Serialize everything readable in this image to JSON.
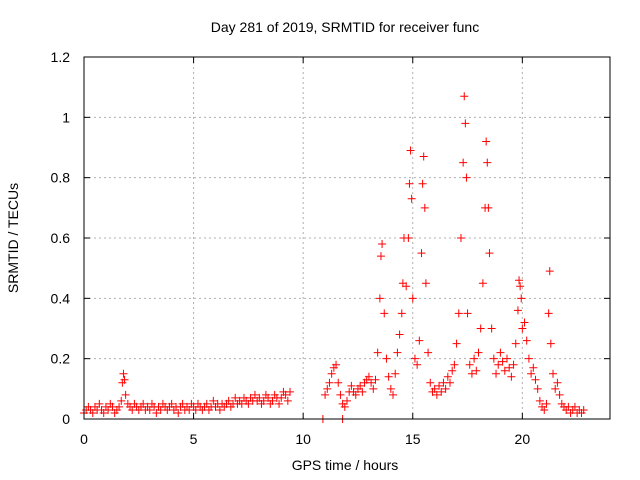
{
  "chart_data": {
    "type": "scatter",
    "title": "Day 281 of 2019, SRMTID for receiver func",
    "xlabel": "GPS time / hours",
    "ylabel": "SRMTID / TECUs",
    "xlim": [
      0,
      24
    ],
    "ylim": [
      0,
      1.2
    ],
    "xticks": [
      0,
      5,
      10,
      15,
      20
    ],
    "xtick_labels": [
      "0",
      "5",
      "10",
      "15",
      "20"
    ],
    "yticks": [
      0,
      0.2,
      0.4,
      0.6,
      0.8,
      1.0,
      1.2
    ],
    "ytick_labels": [
      "0",
      "0.2",
      "0.4",
      "0.6",
      "0.8",
      "1",
      "1.2"
    ],
    "grid": true,
    "marker": "+",
    "color": "#ff0000",
    "series": [
      {
        "name": "SRMTID",
        "points": [
          [
            0.0,
            0.02
          ],
          [
            0.1,
            0.03
          ],
          [
            0.2,
            0.04
          ],
          [
            0.3,
            0.03
          ],
          [
            0.4,
            0.02
          ],
          [
            0.5,
            0.04
          ],
          [
            0.6,
            0.03
          ],
          [
            0.7,
            0.05
          ],
          [
            0.8,
            0.03
          ],
          [
            0.9,
            0.02
          ],
          [
            1.0,
            0.04
          ],
          [
            1.1,
            0.03
          ],
          [
            1.2,
            0.05
          ],
          [
            1.3,
            0.04
          ],
          [
            1.4,
            0.02
          ],
          [
            1.5,
            0.03
          ],
          [
            1.6,
            0.04
          ],
          [
            1.7,
            0.06
          ],
          [
            1.75,
            0.12
          ],
          [
            1.8,
            0.15
          ],
          [
            1.85,
            0.13
          ],
          [
            1.9,
            0.08
          ],
          [
            2.0,
            0.05
          ],
          [
            2.1,
            0.04
          ],
          [
            2.2,
            0.03
          ],
          [
            2.3,
            0.05
          ],
          [
            2.4,
            0.04
          ],
          [
            2.5,
            0.03
          ],
          [
            2.6,
            0.04
          ],
          [
            2.7,
            0.05
          ],
          [
            2.8,
            0.03
          ],
          [
            2.9,
            0.04
          ],
          [
            3.0,
            0.03
          ],
          [
            3.1,
            0.05
          ],
          [
            3.2,
            0.04
          ],
          [
            3.3,
            0.02
          ],
          [
            3.4,
            0.04
          ],
          [
            3.5,
            0.03
          ],
          [
            3.6,
            0.05
          ],
          [
            3.7,
            0.04
          ],
          [
            3.8,
            0.03
          ],
          [
            3.9,
            0.04
          ],
          [
            4.0,
            0.05
          ],
          [
            4.1,
            0.03
          ],
          [
            4.2,
            0.04
          ],
          [
            4.3,
            0.02
          ],
          [
            4.4,
            0.04
          ],
          [
            4.5,
            0.05
          ],
          [
            4.6,
            0.03
          ],
          [
            4.7,
            0.04
          ],
          [
            4.8,
            0.03
          ],
          [
            4.9,
            0.05
          ],
          [
            5.0,
            0.04
          ],
          [
            5.1,
            0.03
          ],
          [
            5.2,
            0.05
          ],
          [
            5.3,
            0.04
          ],
          [
            5.4,
            0.03
          ],
          [
            5.5,
            0.04
          ],
          [
            5.6,
            0.05
          ],
          [
            5.7,
            0.03
          ],
          [
            5.8,
            0.04
          ],
          [
            5.9,
            0.06
          ],
          [
            6.0,
            0.04
          ],
          [
            6.1,
            0.05
          ],
          [
            6.2,
            0.03
          ],
          [
            6.3,
            0.05
          ],
          [
            6.4,
            0.04
          ],
          [
            6.5,
            0.05
          ],
          [
            6.6,
            0.06
          ],
          [
            6.7,
            0.04
          ],
          [
            6.8,
            0.05
          ],
          [
            6.9,
            0.07
          ],
          [
            7.0,
            0.05
          ],
          [
            7.1,
            0.06
          ],
          [
            7.2,
            0.05
          ],
          [
            7.3,
            0.07
          ],
          [
            7.4,
            0.06
          ],
          [
            7.5,
            0.05
          ],
          [
            7.6,
            0.07
          ],
          [
            7.7,
            0.06
          ],
          [
            7.8,
            0.08
          ],
          [
            7.9,
            0.06
          ],
          [
            8.0,
            0.07
          ],
          [
            8.1,
            0.05
          ],
          [
            8.2,
            0.06
          ],
          [
            8.3,
            0.08
          ],
          [
            8.4,
            0.07
          ],
          [
            8.5,
            0.05
          ],
          [
            8.6,
            0.06
          ],
          [
            8.7,
            0.08
          ],
          [
            8.8,
            0.07
          ],
          [
            8.9,
            0.05
          ],
          [
            9.0,
            0.07
          ],
          [
            9.1,
            0.09
          ],
          [
            9.2,
            0.08
          ],
          [
            9.3,
            0.06
          ],
          [
            9.4,
            0.09
          ],
          [
            10.9,
            0.0
          ],
          [
            11.8,
            0.0
          ],
          [
            11.0,
            0.08
          ],
          [
            11.1,
            0.1
          ],
          [
            11.2,
            0.12
          ],
          [
            11.3,
            0.15
          ],
          [
            11.4,
            0.17
          ],
          [
            11.5,
            0.18
          ],
          [
            11.6,
            0.12
          ],
          [
            11.7,
            0.08
          ],
          [
            11.8,
            0.05
          ],
          [
            11.9,
            0.04
          ],
          [
            12.0,
            0.06
          ],
          [
            12.1,
            0.09
          ],
          [
            12.2,
            0.11
          ],
          [
            12.3,
            0.09
          ],
          [
            12.4,
            0.08
          ],
          [
            12.5,
            0.1
          ],
          [
            12.6,
            0.11
          ],
          [
            12.7,
            0.09
          ],
          [
            12.8,
            0.12
          ],
          [
            12.9,
            0.13
          ],
          [
            13.0,
            0.14
          ],
          [
            13.1,
            0.12
          ],
          [
            13.2,
            0.1
          ],
          [
            13.3,
            0.13
          ],
          [
            13.4,
            0.22
          ],
          [
            13.5,
            0.4
          ],
          [
            13.55,
            0.54
          ],
          [
            13.6,
            0.58
          ],
          [
            13.7,
            0.35
          ],
          [
            13.8,
            0.2
          ],
          [
            13.9,
            0.14
          ],
          [
            14.0,
            0.1
          ],
          [
            14.1,
            0.08
          ],
          [
            14.2,
            0.15
          ],
          [
            14.3,
            0.22
          ],
          [
            14.4,
            0.28
          ],
          [
            14.5,
            0.35
          ],
          [
            14.55,
            0.45
          ],
          [
            14.6,
            0.6
          ],
          [
            14.7,
            0.44
          ],
          [
            14.8,
            0.6
          ],
          [
            14.85,
            0.78
          ],
          [
            14.9,
            0.89
          ],
          [
            14.95,
            0.73
          ],
          [
            15.0,
            0.4
          ],
          [
            15.1,
            0.2
          ],
          [
            15.2,
            0.18
          ],
          [
            15.3,
            0.26
          ],
          [
            15.4,
            0.55
          ],
          [
            15.45,
            0.78
          ],
          [
            15.5,
            0.87
          ],
          [
            15.55,
            0.7
          ],
          [
            15.6,
            0.45
          ],
          [
            15.7,
            0.22
          ],
          [
            15.8,
            0.12
          ],
          [
            15.9,
            0.09
          ],
          [
            16.0,
            0.1
          ],
          [
            16.1,
            0.08
          ],
          [
            16.2,
            0.11
          ],
          [
            16.3,
            0.09
          ],
          [
            16.4,
            0.12
          ],
          [
            16.5,
            0.1
          ],
          [
            16.6,
            0.14
          ],
          [
            16.7,
            0.12
          ],
          [
            16.8,
            0.16
          ],
          [
            16.9,
            0.18
          ],
          [
            17.0,
            0.25
          ],
          [
            17.1,
            0.35
          ],
          [
            17.2,
            0.6
          ],
          [
            17.3,
            0.85
          ],
          [
            17.35,
            1.07
          ],
          [
            17.4,
            0.98
          ],
          [
            17.45,
            0.8
          ],
          [
            17.5,
            0.35
          ],
          [
            17.6,
            0.18
          ],
          [
            17.7,
            0.15
          ],
          [
            17.8,
            0.2
          ],
          [
            17.9,
            0.16
          ],
          [
            18.0,
            0.22
          ],
          [
            18.1,
            0.3
          ],
          [
            18.2,
            0.45
          ],
          [
            18.3,
            0.7
          ],
          [
            18.35,
            0.92
          ],
          [
            18.4,
            0.85
          ],
          [
            18.45,
            0.7
          ],
          [
            18.5,
            0.55
          ],
          [
            18.6,
            0.3
          ],
          [
            18.7,
            0.2
          ],
          [
            18.8,
            0.15
          ],
          [
            18.9,
            0.18
          ],
          [
            19.0,
            0.22
          ],
          [
            19.1,
            0.19
          ],
          [
            19.2,
            0.16
          ],
          [
            19.3,
            0.2
          ],
          [
            19.4,
            0.17
          ],
          [
            19.5,
            0.14
          ],
          [
            19.6,
            0.18
          ],
          [
            19.7,
            0.25
          ],
          [
            19.8,
            0.36
          ],
          [
            19.85,
            0.46
          ],
          [
            19.9,
            0.44
          ],
          [
            19.95,
            0.4
          ],
          [
            20.0,
            0.3
          ],
          [
            20.1,
            0.32
          ],
          [
            20.2,
            0.26
          ],
          [
            20.3,
            0.2
          ],
          [
            20.4,
            0.15
          ],
          [
            20.5,
            0.17
          ],
          [
            20.6,
            0.13
          ],
          [
            20.7,
            0.1
          ],
          [
            20.8,
            0.06
          ],
          [
            20.9,
            0.04
          ],
          [
            21.0,
            0.03
          ],
          [
            21.1,
            0.05
          ],
          [
            21.2,
            0.35
          ],
          [
            21.25,
            0.49
          ],
          [
            21.3,
            0.25
          ],
          [
            21.4,
            0.15
          ],
          [
            21.5,
            0.1
          ],
          [
            21.6,
            0.12
          ],
          [
            21.7,
            0.08
          ],
          [
            21.8,
            0.05
          ],
          [
            21.9,
            0.04
          ],
          [
            22.0,
            0.03
          ],
          [
            22.1,
            0.04
          ],
          [
            22.2,
            0.02
          ],
          [
            22.3,
            0.03
          ],
          [
            22.4,
            0.04
          ],
          [
            22.5,
            0.02
          ],
          [
            22.6,
            0.03
          ],
          [
            22.7,
            0.02
          ],
          [
            22.8,
            0.03
          ]
        ]
      }
    ]
  }
}
